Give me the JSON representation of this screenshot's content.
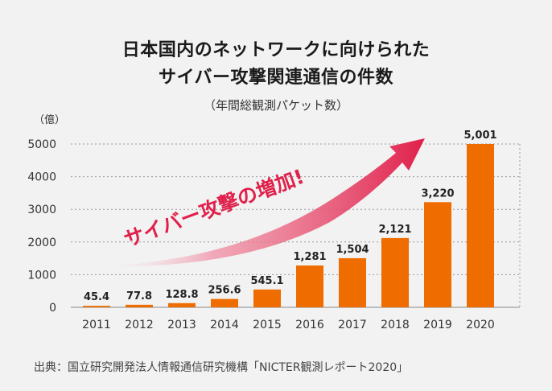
{
  "title_line1": "日本国内のネットワークに向けられた",
  "title_line2": "サイバー攻撃関連通信の件数",
  "subtitle": "（年間総観測パケット数）",
  "unit_label": "（億）",
  "annotation": "サイバー攻撃の増加!",
  "source": "出典：国立研究開発法人情報通信研究機構「NICTER観測レポート2020」",
  "colors": {
    "bar": "#ee6c00",
    "arrow": "#e0204a",
    "annotation_text": "#e0204a",
    "grid": "#999999",
    "background": "#f2f2f2"
  },
  "chart_data": {
    "type": "bar",
    "title": "日本国内のネットワークに向けられたサイバー攻撃関連通信の件数",
    "subtitle": "（年間総観測パケット数）",
    "ylabel": "（億）",
    "xlabel": "",
    "categories": [
      "2011",
      "2012",
      "2013",
      "2014",
      "2015",
      "2016",
      "2017",
      "2018",
      "2019",
      "2020"
    ],
    "values": [
      45.4,
      77.8,
      128.8,
      256.6,
      545.1,
      1281,
      1504,
      2121,
      3220,
      5001
    ],
    "data_labels": [
      "45.4",
      "77.8",
      "128.8",
      "256.6",
      "545.1",
      "1,281",
      "1,504",
      "2,121",
      "3,220",
      "5,001"
    ],
    "ylim": [
      0,
      5000
    ],
    "yticks": [
      0,
      1000,
      2000,
      3000,
      4000,
      5000
    ],
    "ytick_labels": [
      "0",
      "1000",
      "2000",
      "3000",
      "4000",
      "5000"
    ],
    "grid": true
  }
}
